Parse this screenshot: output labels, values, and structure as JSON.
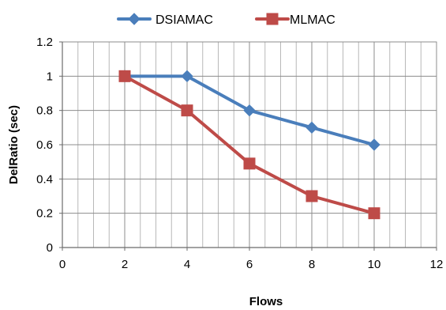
{
  "chart_data": {
    "type": "line",
    "title": "",
    "xlabel": "Flows",
    "ylabel": "DelRatio (sec)",
    "xlim": [
      0,
      12
    ],
    "ylim": [
      0,
      1.2
    ],
    "x_ticks": [
      "0",
      "2",
      "4",
      "6",
      "8",
      "10",
      "12"
    ],
    "y_ticks": [
      "0",
      "0.2",
      "0.4",
      "0.6",
      "0.8",
      "1",
      "1.2"
    ],
    "grid": true,
    "legend_position": "top",
    "series": [
      {
        "name": "DSIAMAC",
        "color": "#4a7ebb",
        "marker": "diamond",
        "x": [
          2,
          4,
          6,
          8,
          10
        ],
        "y": [
          1.0,
          1.0,
          0.8,
          0.7,
          0.6
        ]
      },
      {
        "name": "MLMAC",
        "color": "#be4b48",
        "marker": "square",
        "x": [
          2,
          4,
          6,
          8,
          10
        ],
        "y": [
          1.0,
          0.8,
          0.49,
          0.3,
          0.2
        ]
      }
    ]
  }
}
